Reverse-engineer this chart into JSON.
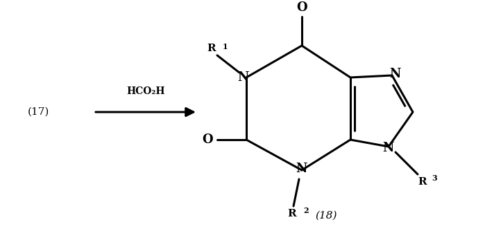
{
  "bg_color": "#ffffff",
  "line_color": "#000000",
  "line_width": 2.2,
  "arrow_label": "HCO₂H",
  "label_17": "(17)",
  "label_18": "(18)",
  "fig_width": 6.99,
  "fig_height": 3.34
}
